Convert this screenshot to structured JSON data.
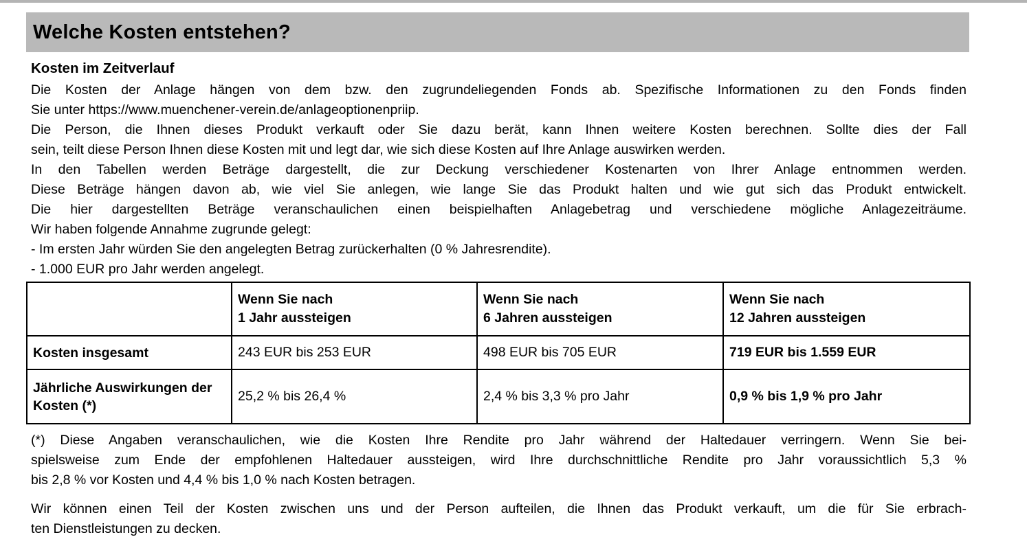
{
  "section": {
    "title": "Welche Kosten entstehen?"
  },
  "costs_over_time": {
    "heading": "Kosten im Zeitverlauf",
    "fund_costs_lines": [
      "Die Kosten der Anlage hängen von dem bzw. den zugrundeliegenden Fonds ab. Spezifische Informationen zu den Fonds finden",
      "Sie unter https://www.muenchener-verein.de/anlageoptionenpriip."
    ],
    "advisor_costs_lines": [
      "Die Person, die Ihnen dieses Produkt verkauft oder Sie dazu berät, kann Ihnen weitere Kosten berechnen. Sollte dies der Fall",
      "sein, teilt diese Person Ihnen diese Kosten mit und legt dar, wie sich diese Kosten auf Ihre Anlage auswirken werden."
    ],
    "tables_explanation_lines": [
      "In den Tabellen werden Beträge dargestellt, die zur Deckung verschiedener Kostenarten von Ihrer Anlage entnommen werden.",
      "Diese Beträge hängen davon ab, wie viel Sie anlegen, wie lange Sie das Produkt halten und wie gut sich das Produkt entwickelt.",
      "Die hier dargestellten Beträge veranschaulichen einen beispielhaften Anlagebetrag und verschiedene mögliche Anlagezeiträume.",
      "Wir haben folgende Annahme zugrunde gelegt:"
    ],
    "assumptions": [
      "- Im ersten Jahr würden Sie den angelegten Betrag zurückerhalten (0 % Jahresrendite).",
      "- 1.000 EUR pro Jahr werden angelegt."
    ]
  },
  "cost_table": {
    "column_headers": [
      "",
      "Wenn Sie nach\n1 Jahr aussteigen",
      "Wenn Sie nach\n6 Jahren aussteigen",
      "Wenn Sie nach\n12 Jahren aussteigen"
    ],
    "rows": [
      {
        "label": "Kosten insgesamt",
        "after_1_year": "243 EUR bis 253 EUR",
        "after_6_years": "498 EUR bis 705 EUR",
        "after_12_years": "719 EUR bis 1.559 EUR"
      },
      {
        "label": "Jährliche Auswirkungen der Kosten (*)",
        "after_1_year": "25,2 % bis 26,4 %",
        "after_6_years": "2,4 % bis 3,3 % pro Jahr",
        "after_12_years": "0,9 % bis 1,9 % pro Jahr"
      }
    ]
  },
  "footnote_lines": [
    "(*) Diese Angaben veranschaulichen, wie die Kosten Ihre Rendite pro Jahr während der Haltedauer verringern. Wenn Sie bei-",
    "spielsweise zum Ende der empfohlenen Haltedauer aussteigen, wird Ihre durchschnittliche Rendite pro Jahr voraussichtlich 5,3 %",
    "bis 2,8 % vor Kosten und 4,4 % bis 1,0 % nach Kosten betragen."
  ],
  "closing_lines": [
    "Wir können einen Teil der Kosten zwischen uns und der Person aufteilen, die Ihnen das Produkt verkauft, um die für Sie erbrach-",
    "ten Dienstleistungen zu decken."
  ],
  "colors": {
    "header_bar": "#b9b9b9",
    "top_rule": "#b4b4b4",
    "table_border": "#000000",
    "text": "#000000",
    "background": "#ffffff"
  }
}
